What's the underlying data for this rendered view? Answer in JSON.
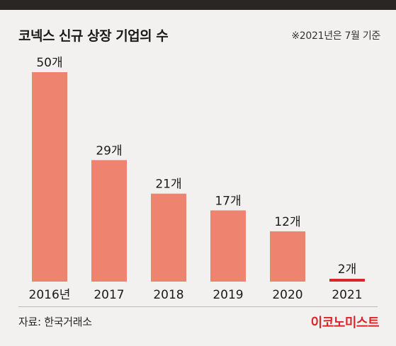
{
  "title": "코넥스 신규 상장 기업의 수",
  "note": "※2021년은 7월 기준",
  "source": "자료: 한국거래소",
  "brand": "이코노미스트",
  "colors": {
    "bar": "#ee8470",
    "highlight": "#d8262b",
    "rule": "#2a2624",
    "background": "#f2f1ef"
  },
  "chart_data": {
    "type": "bar",
    "categories": [
      "2016년",
      "2017",
      "2018",
      "2019",
      "2020",
      "2021"
    ],
    "values": [
      50,
      29,
      21,
      17,
      12,
      2
    ],
    "value_labels": [
      "50개",
      "29개",
      "21개",
      "17개",
      "12개",
      "2개"
    ],
    "highlight_index": 5,
    "title": "코넥스 신규 상장 기업의 수",
    "ylim": [
      0,
      50
    ],
    "grid": false,
    "legend": "none"
  }
}
